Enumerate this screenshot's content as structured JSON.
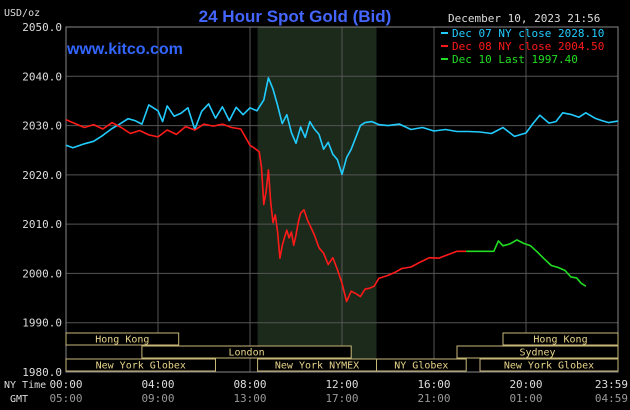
{
  "chart_data": {
    "type": "line",
    "title": "24 Hour Spot Gold (Bid)",
    "units_label": "USD/oz",
    "watermark": "www.kitco.com",
    "timestamp": "December 10, 2023 21:56",
    "ylim": [
      1980,
      2050
    ],
    "y_ticks": [
      1980,
      1990,
      2000,
      2010,
      2020,
      2030,
      2040,
      2050
    ],
    "y_tick_labels": [
      "1980.0",
      "1990.0",
      "2000.0",
      "2010.0",
      "2020.0",
      "2030.0",
      "2040.0",
      "2050.0"
    ],
    "xlim_hours": [
      0,
      24
    ],
    "x_ticks_hours": [
      0,
      4,
      8,
      12,
      16,
      20,
      24
    ],
    "x_tick_labels": [
      "00:00",
      "04:00",
      "08:00",
      "12:00",
      "16:00",
      "20:00",
      "23:59"
    ],
    "x_tick_labels_gmt": [
      "05:00",
      "09:00",
      "13:00",
      "17:00",
      "21:00",
      "01:00",
      "04:59"
    ],
    "x_row_labels": {
      "ny_time": "NY Time",
      "gmt": "GMT"
    },
    "shaded_session_hours": [
      8.33,
      13.5
    ],
    "grid": true,
    "legend_position": "top-right",
    "series": [
      {
        "name": "Dec 07 NY close 2028.10",
        "color": "#22ccff",
        "x": [
          0,
          0.3,
          0.8,
          1.2,
          1.6,
          2,
          2.3,
          2.7,
          3,
          3.3,
          3.6,
          4,
          4.2,
          4.4,
          4.7,
          5,
          5.3,
          5.6,
          5.9,
          6.2,
          6.5,
          6.8,
          7.1,
          7.4,
          7.7,
          8,
          8.3,
          8.6,
          8.8,
          9.0,
          9.2,
          9.4,
          9.6,
          9.8,
          10.0,
          10.2,
          10.4,
          10.6,
          10.8,
          11.0,
          11.2,
          11.4,
          11.6,
          11.8,
          12.0,
          12.2,
          12.4,
          12.6,
          12.8,
          13.0,
          13.3,
          13.6,
          14,
          14.5,
          15,
          15.5,
          16,
          16.5,
          17,
          17.5,
          18,
          18.5,
          19,
          19.5,
          20,
          20.3,
          20.6,
          21,
          21.3,
          21.6,
          22,
          22.3,
          22.6,
          23,
          23.3,
          23.6,
          24
        ],
        "values": [
          2026.0,
          2025.5,
          2026.3,
          2026.8,
          2028.0,
          2029.4,
          2030.2,
          2031.4,
          2031.0,
          2030.3,
          2034.2,
          2033.0,
          2030.8,
          2034.0,
          2031.9,
          2032.5,
          2033.6,
          2029.2,
          2032.9,
          2034.4,
          2031.5,
          2033.8,
          2031.0,
          2033.7,
          2032.2,
          2033.6,
          2033.0,
          2035.2,
          2039.7,
          2037.4,
          2034.1,
          2030.4,
          2032.2,
          2028.6,
          2026.4,
          2029.7,
          2027.6,
          2030.8,
          2029.3,
          2028.2,
          2025.2,
          2026.6,
          2024.2,
          2023.1,
          2020.1,
          2023.5,
          2025.2,
          2027.6,
          2030.0,
          2030.6,
          2030.8,
          2030.2,
          2030.0,
          2030.3,
          2029.2,
          2029.6,
          2028.9,
          2029.2,
          2028.8,
          2028.8,
          2028.7,
          2028.4,
          2029.6,
          2027.8,
          2028.5,
          2030.4,
          2032.1,
          2030.5,
          2030.8,
          2032.6,
          2032.2,
          2031.7,
          2032.6,
          2031.5,
          2031.0,
          2030.6,
          2030.9
        ]
      },
      {
        "name": "Dec 08 NY close 2004.50",
        "color": "#ff1a1a",
        "x": [
          0,
          0.4,
          0.8,
          1.2,
          1.6,
          2,
          2.4,
          2.8,
          3.2,
          3.6,
          4,
          4.4,
          4.8,
          5.2,
          5.6,
          6,
          6.4,
          6.8,
          7.2,
          7.6,
          8,
          8.2,
          8.4,
          8.5,
          8.6,
          8.7,
          8.8,
          8.9,
          9.0,
          9.1,
          9.2,
          9.3,
          9.4,
          9.5,
          9.6,
          9.7,
          9.8,
          9.9,
          10.0,
          10.1,
          10.2,
          10.35,
          10.5,
          10.65,
          10.8,
          11.0,
          11.2,
          11.4,
          11.6,
          11.8,
          12.0,
          12.2,
          12.4,
          12.6,
          12.8,
          13.0,
          13.2,
          13.4,
          13.6,
          13.8,
          14.0,
          14.3,
          14.6,
          15.0,
          15.4,
          15.8,
          16.2,
          16.6,
          17.0,
          17.4
        ],
        "values": [
          2031.2,
          2030.4,
          2029.6,
          2030.2,
          2029.3,
          2030.6,
          2029.6,
          2028.4,
          2029.0,
          2028.1,
          2027.7,
          2029.1,
          2028.2,
          2029.8,
          2029.1,
          2030.3,
          2029.9,
          2030.3,
          2029.6,
          2029.3,
          2026.0,
          2025.4,
          2024.7,
          2021.5,
          2014.0,
          2016.6,
          2021.0,
          2014.5,
          2010.3,
          2011.9,
          2008.4,
          2003.1,
          2005.6,
          2007.3,
          2008.8,
          2007.2,
          2008.4,
          2005.7,
          2007.8,
          2010.4,
          2012.2,
          2012.9,
          2010.8,
          2009.3,
          2007.8,
          2005.2,
          2004.1,
          2001.8,
          2003.2,
          2000.8,
          1998.0,
          1994.3,
          1996.4,
          1995.9,
          1995.3,
          1996.8,
          1997.0,
          1997.4,
          1999.0,
          1999.3,
          1999.6,
          2000.2,
          2001.0,
          2001.3,
          2002.3,
          2003.2,
          2003.1,
          2003.8,
          2004.5,
          2004.5
        ]
      },
      {
        "name": "Dec 10 Last 1997.40",
        "color": "#22dd22",
        "x": [
          17.4,
          18.0,
          18.6,
          18.8,
          19.0,
          19.3,
          19.6,
          19.9,
          20.2,
          20.5,
          20.8,
          21.1,
          21.4,
          21.7,
          21.95,
          22.2,
          22.4,
          22.6
        ],
        "values": [
          2004.5,
          2004.5,
          2004.5,
          2006.6,
          2005.6,
          2006.0,
          2006.8,
          2006.1,
          2005.6,
          2004.3,
          2002.9,
          2001.6,
          2001.2,
          2000.6,
          1999.3,
          1999.1,
          1998.0,
          1997.4
        ]
      }
    ],
    "market_sessions": [
      {
        "label": "Hong Kong",
        "start": 0.0,
        "end": 4.9,
        "row": 0
      },
      {
        "label": "London",
        "start": 3.3,
        "end": 12.4,
        "row": 1
      },
      {
        "label": "New York Globex",
        "start": 0.0,
        "end": 6.5,
        "row": 2
      },
      {
        "label": "New York NYMEX",
        "start": 8.33,
        "end": 13.5,
        "row": 2
      },
      {
        "label": "NY Globex",
        "start": 13.5,
        "end": 17.4,
        "row": 2
      },
      {
        "label": "Hong Kong",
        "start": 19.0,
        "end": 24.0,
        "row": 0
      },
      {
        "label": "Sydney",
        "start": 17.0,
        "end": 24.0,
        "row": 1
      },
      {
        "label": "New York Globex",
        "start": 18.0,
        "end": 24.0,
        "row": 2
      }
    ],
    "colors": {
      "background": "#000000",
      "plot_border": "#888888",
      "grid": "#555555",
      "axis_text": "#dddddd",
      "title": "#4466ff",
      "watermark": "#3366ff",
      "session_fill": "#000000",
      "session_border": "#c8b878",
      "session_text": "#e8d48a",
      "shade": "#1b2a1b"
    }
  }
}
